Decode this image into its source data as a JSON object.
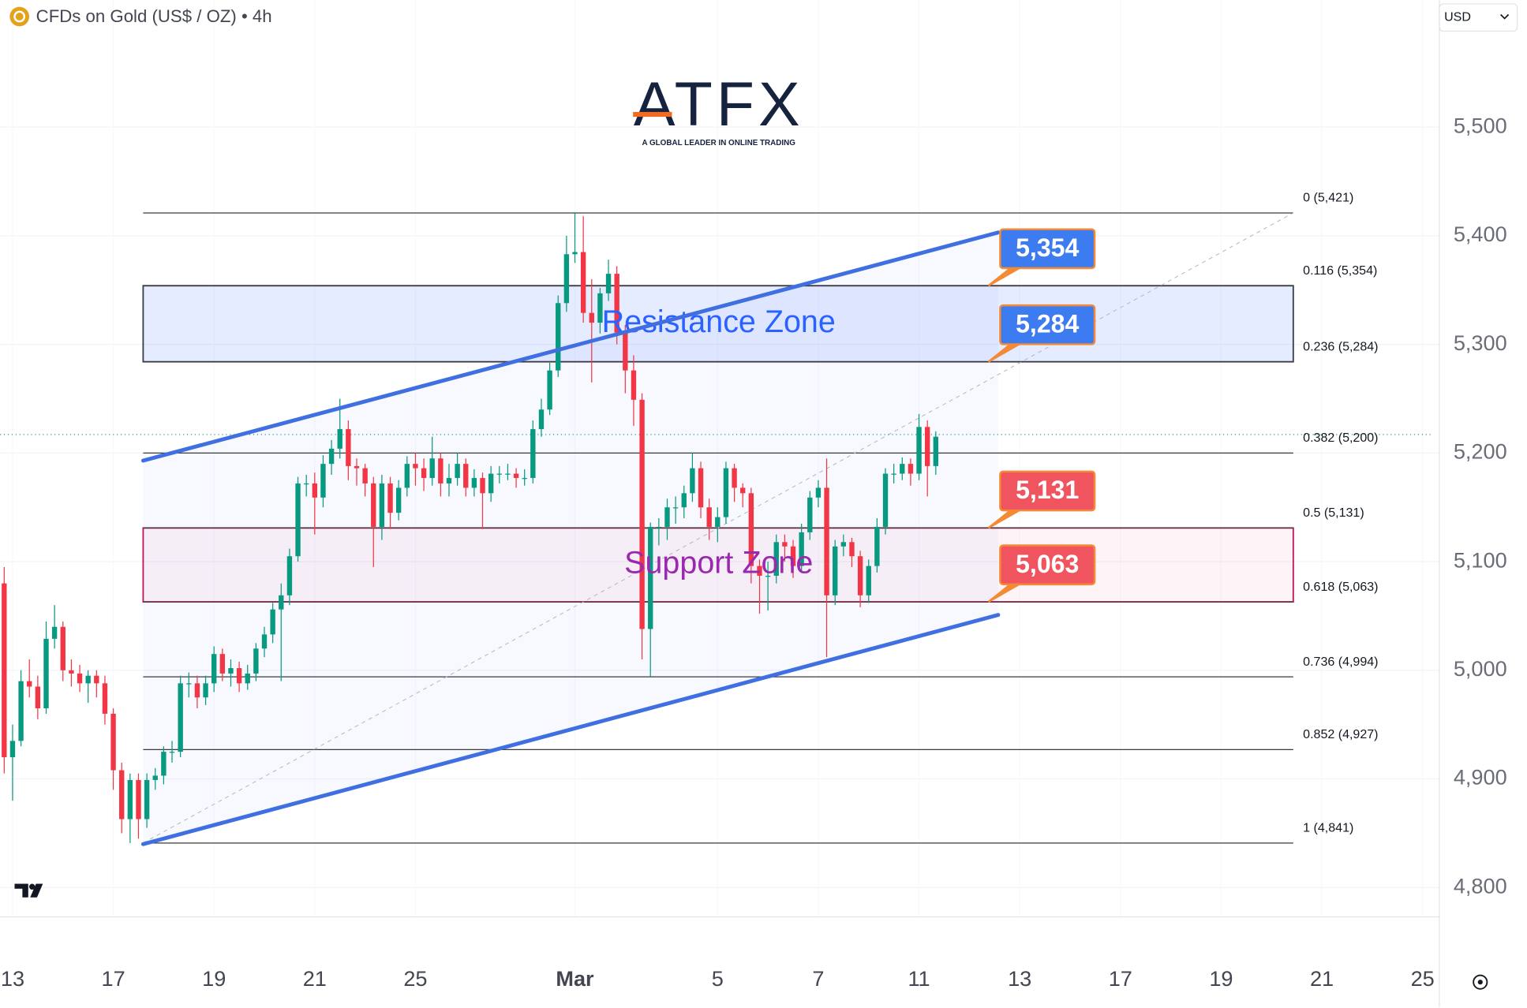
{
  "header": {
    "symbol": "CFDs on Gold (US$ / OZ) • 4h",
    "currency": "USD"
  },
  "logo": {
    "name": "ATFX",
    "tagline": "A GLOBAL LEADER IN ONLINE TRADING"
  },
  "chart_data": {
    "type": "candlestick",
    "up_color": "#089981",
    "down_color": "#f23645",
    "open": [
      5080,
      4920,
      4935,
      4990,
      4985,
      4965,
      5029,
      5040,
      5000,
      4997,
      4988,
      4995,
      4988,
      4960,
      4908,
      4863,
      4899,
      4863,
      4899,
      4903,
      4925,
      4925,
      4988,
      4988,
      4975,
      4988,
      5015,
      4997,
      5002,
      4988,
      4997,
      5020,
      5033,
      5056,
      5069,
      5105,
      5172,
      5172,
      5159,
      5190,
      5204,
      5222,
      5188,
      5186,
      5172,
      5132,
      5172,
      5145,
      5168,
      5190,
      5186,
      5177,
      5195,
      5172,
      5177,
      5190,
      5168,
      5177,
      5163,
      5181,
      5181,
      5181,
      5177,
      5177,
      5222,
      5240,
      5276,
      5338,
      5383,
      5385,
      5329,
      5320,
      5347,
      5365,
      5311,
      5276,
      5249,
      5038,
      5132,
      5132,
      5150,
      5150,
      5163,
      5186,
      5150,
      5132,
      5141,
      5186,
      5168,
      5163,
      5096,
      5087,
      5087,
      5118,
      5114,
      5096,
      5127,
      5159,
      5168,
      5069,
      5114,
      5118,
      5105,
      5069,
      5096,
      5132,
      5181,
      5181,
      5190,
      5181,
      5224,
      5188
    ],
    "high": [
      5095,
      4950,
      5000,
      5010,
      4995,
      5045,
      5060,
      5045,
      5010,
      5005,
      5000,
      5000,
      4995,
      4965,
      4915,
      4905,
      4905,
      4905,
      4910,
      4930,
      4935,
      4995,
      4998,
      4995,
      4995,
      5022,
      5020,
      5010,
      5008,
      5005,
      5025,
      5040,
      5062,
      5080,
      5112,
      5178,
      5180,
      5182,
      5198,
      5212,
      5250,
      5230,
      5195,
      5190,
      5178,
      5180,
      5178,
      5175,
      5197,
      5200,
      5195,
      5215,
      5200,
      5190,
      5200,
      5195,
      5185,
      5182,
      5188,
      5188,
      5190,
      5186,
      5185,
      5230,
      5250,
      5283,
      5345,
      5400,
      5421,
      5418,
      5360,
      5352,
      5378,
      5372,
      5318,
      5290,
      5255,
      5136,
      5140,
      5158,
      5160,
      5170,
      5200,
      5192,
      5158,
      5150,
      5192,
      5190,
      5172,
      5168,
      5102,
      5100,
      5125,
      5125,
      5120,
      5135,
      5165,
      5175,
      5195,
      5120,
      5125,
      5122,
      5110,
      5102,
      5140,
      5186,
      5190,
      5196,
      5195,
      5236,
      5230,
      5220
    ],
    "low": [
      4905,
      4880,
      4930,
      4975,
      4955,
      4960,
      5020,
      4990,
      4985,
      4980,
      4970,
      4975,
      4950,
      4890,
      4850,
      4841,
      4845,
      4855,
      4890,
      4895,
      4915,
      4920,
      4975,
      4965,
      4968,
      4980,
      4990,
      4985,
      4980,
      4982,
      4990,
      5012,
      5025,
      4990,
      5060,
      5100,
      5160,
      5125,
      5150,
      5180,
      5195,
      5175,
      5170,
      5160,
      5095,
      5120,
      5130,
      5138,
      5160,
      5170,
      5165,
      5170,
      5160,
      5160,
      5170,
      5160,
      5160,
      5130,
      5155,
      5172,
      5175,
      5168,
      5170,
      5172,
      5215,
      5235,
      5270,
      5330,
      5375,
      5320,
      5265,
      5310,
      5340,
      5300,
      5255,
      5225,
      5010,
      4994,
      5115,
      5120,
      5135,
      5140,
      5155,
      5140,
      5120,
      5118,
      5135,
      5155,
      5150,
      5080,
      5052,
      5055,
      5080,
      5100,
      5085,
      5090,
      5120,
      5150,
      5012,
      5060,
      5105,
      5095,
      5058,
      5062,
      5090,
      5125,
      5172,
      5175,
      5170,
      5175,
      5160,
      5180
    ],
    "close": [
      4920,
      4935,
      4990,
      4985,
      4965,
      5029,
      5040,
      5000,
      4997,
      4988,
      4995,
      4988,
      4960,
      4908,
      4863,
      4899,
      4863,
      4899,
      4903,
      4925,
      4925,
      4988,
      4988,
      4975,
      4988,
      5015,
      4997,
      5002,
      4988,
      4997,
      5020,
      5033,
      5056,
      5069,
      5105,
      5172,
      5172,
      5159,
      5190,
      5204,
      5222,
      5188,
      5186,
      5172,
      5132,
      5172,
      5145,
      5168,
      5190,
      5186,
      5177,
      5195,
      5172,
      5177,
      5190,
      5168,
      5177,
      5163,
      5181,
      5181,
      5181,
      5177,
      5177,
      5222,
      5240,
      5276,
      5338,
      5383,
      5385,
      5329,
      5320,
      5347,
      5365,
      5311,
      5276,
      5249,
      5038,
      5132,
      5132,
      5150,
      5150,
      5163,
      5186,
      5150,
      5132,
      5141,
      5186,
      5168,
      5163,
      5096,
      5087,
      5087,
      5118,
      5114,
      5096,
      5127,
      5159,
      5168,
      5069,
      5114,
      5118,
      5105,
      5069,
      5096,
      5132,
      5181,
      5181,
      5190,
      5181,
      5224,
      5188,
      5215
    ],
    "xlim": [
      -0.5,
      171
    ],
    "xticks": [
      {
        "value": 1,
        "label": "13"
      },
      {
        "value": 13,
        "label": "17"
      },
      {
        "value": 25,
        "label": "19"
      },
      {
        "value": 37,
        "label": "21"
      },
      {
        "value": 49,
        "label": "25"
      },
      {
        "value": 68,
        "label": "Mar"
      },
      {
        "value": 85,
        "label": "5"
      },
      {
        "value": 97,
        "label": "7"
      },
      {
        "value": 109,
        "label": "11"
      },
      {
        "value": 121,
        "label": "13"
      },
      {
        "value": 133,
        "label": "17"
      },
      {
        "value": 145,
        "label": "19"
      },
      {
        "value": 157,
        "label": "21"
      },
      {
        "value": 169,
        "label": "25"
      }
    ],
    "ylim": [
      4773,
      5617
    ],
    "yticks": [
      {
        "value": 4800,
        "label": "4,800"
      },
      {
        "value": 4900,
        "label": "4,900"
      },
      {
        "value": 5000,
        "label": "5,000"
      },
      {
        "value": 5100,
        "label": "5,100"
      },
      {
        "value": 5200,
        "label": "5,200"
      },
      {
        "value": 5300,
        "label": "5,300"
      },
      {
        "value": 5400,
        "label": "5,400"
      },
      {
        "value": 5500,
        "label": "5,500"
      }
    ],
    "grid": true,
    "last_price": 5217,
    "fib_levels": [
      {
        "value": 5421,
        "label": "0 (5,421)"
      },
      {
        "value": 5354,
        "label": "0.116 (5,354)"
      },
      {
        "value": 5284,
        "label": "0.236 (5,284)"
      },
      {
        "value": 5200,
        "label": "0.382 (5,200)"
      },
      {
        "value": 5131,
        "label": "0.5 (5,131)"
      },
      {
        "value": 5063,
        "label": "0.618 (5,063)"
      },
      {
        "value": 4994,
        "label": "0.736 (4,994)"
      },
      {
        "value": 4927,
        "label": "0.852 (4,927)"
      },
      {
        "value": 4841,
        "label": "1 (4,841)"
      }
    ],
    "zones": [
      {
        "label": "Resistance Zone",
        "range": [
          5284,
          5354
        ],
        "color": "#2962ff"
      },
      {
        "label": "Support Zone",
        "range": [
          5063,
          5131
        ],
        "color": "#9c27b0"
      }
    ],
    "channel": {
      "upper": [
        5193,
        5403
      ],
      "lower": [
        4840,
        5051
      ],
      "color": "#3f6fe0"
    },
    "callouts": [
      {
        "value": 5354,
        "label": "5,354",
        "color": "#3d7cf0"
      },
      {
        "value": 5284,
        "label": "5,284",
        "color": "#3d7cf0"
      },
      {
        "value": 5131,
        "label": "5,131",
        "color": "#f0555f"
      },
      {
        "value": 5063,
        "label": "5,063",
        "color": "#f0555f"
      }
    ]
  }
}
